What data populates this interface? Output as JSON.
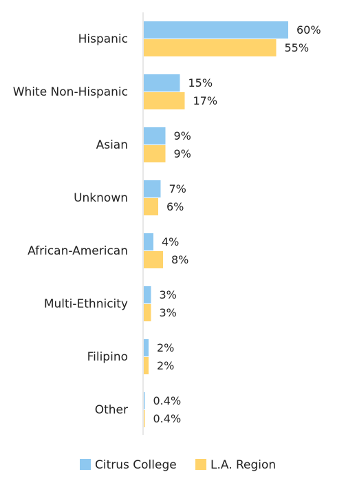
{
  "chart_data": {
    "type": "bar",
    "orientation": "horizontal",
    "categories": [
      "Hispanic",
      "White Non-Hispanic",
      "Asian",
      "Unknown",
      "African-American",
      "Multi-Ethnicity",
      "Filipino",
      "Other"
    ],
    "series": [
      {
        "name": "Citrus College",
        "color": "#8ec8f0",
        "values": [
          60,
          15,
          9,
          7,
          4,
          3,
          2,
          0.4
        ],
        "labels": [
          "60%",
          "15%",
          "9%",
          "7%",
          "4%",
          "3%",
          "2%",
          "0.4%"
        ]
      },
      {
        "name": "L.A. Region",
        "color": "#ffd36b",
        "values": [
          55,
          17,
          9,
          6,
          8,
          3,
          2,
          0.4
        ],
        "labels": [
          "55%",
          "17%",
          "9%",
          "6%",
          "8%",
          "3%",
          "2%",
          "0.4%"
        ]
      }
    ],
    "xlim": [
      0,
      60
    ],
    "grid": false,
    "legend_position": "bottom"
  }
}
